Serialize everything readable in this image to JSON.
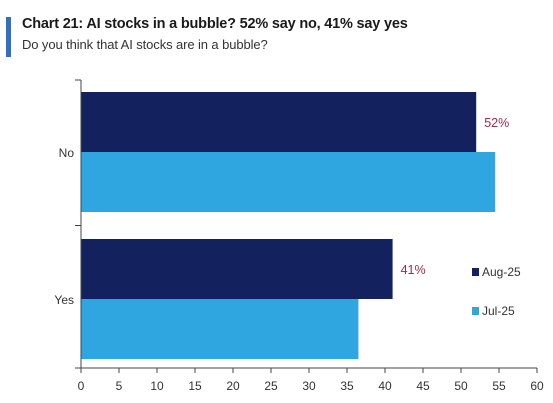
{
  "header": {
    "title": "Chart 21: AI stocks in a bubble? 52% say no, 41% say yes",
    "subtitle": "Do you think that AI stocks are in a bubble?"
  },
  "colors": {
    "accent": "#2f6fc4",
    "aug": "#14215f",
    "jul": "#2fa6e0",
    "label": "#9b2d4b",
    "axis": "#444444",
    "text": "#333333"
  },
  "chart_data": {
    "type": "bar",
    "orientation": "horizontal",
    "title": "Chart 21: AI stocks in a bubble? 52% say no, 41% say yes",
    "subtitle": "Do you think that AI stocks are in a bubble?",
    "categories": [
      "No",
      "Yes"
    ],
    "series": [
      {
        "name": "Aug-25",
        "values": [
          52,
          41
        ],
        "color": "#14215f",
        "labels": [
          "52%",
          "41%"
        ]
      },
      {
        "name": "Jul-25",
        "values": [
          54.5,
          36.5
        ],
        "color": "#2fa6e0"
      }
    ],
    "xlim": [
      0,
      60
    ],
    "xticks": [
      0,
      5,
      10,
      15,
      20,
      25,
      30,
      35,
      40,
      45,
      50,
      55,
      60
    ],
    "grid": false,
    "legend_position": "right"
  }
}
